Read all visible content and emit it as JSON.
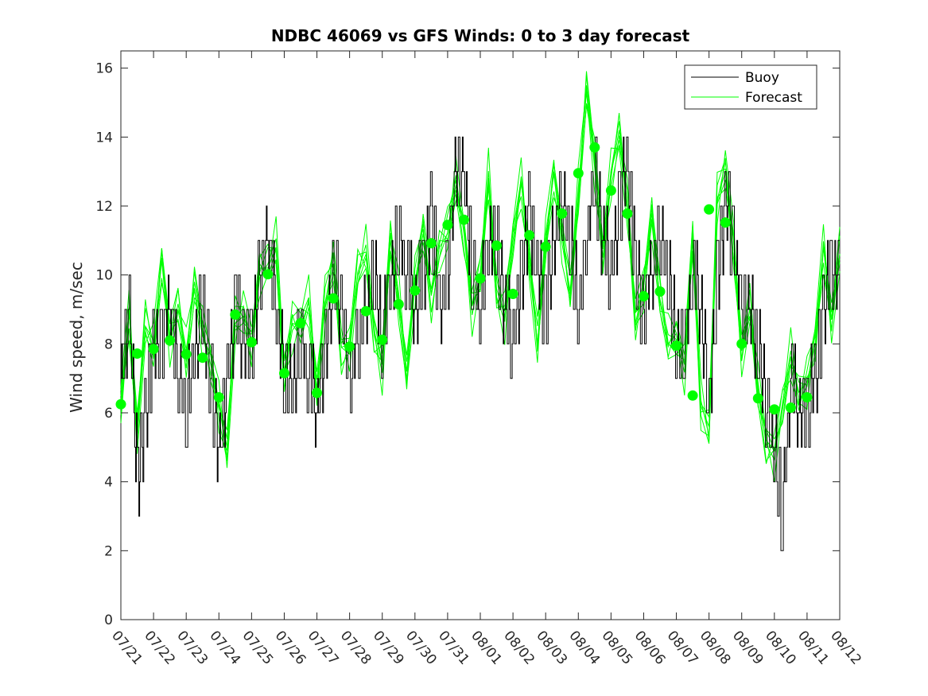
{
  "chart_data": {
    "type": "line",
    "title": "NDBC 46069 vs GFS Winds: 0 to 3 day forecast",
    "xlabel": "",
    "ylabel": "Wind speed, m/sec",
    "xlim": [
      "07/21",
      "08/12"
    ],
    "ylim": [
      0,
      16.5
    ],
    "yticks": [
      0,
      2,
      4,
      6,
      8,
      10,
      12,
      14,
      16
    ],
    "xticks": [
      "07/21",
      "07/22",
      "07/23",
      "07/24",
      "07/25",
      "07/26",
      "07/27",
      "07/28",
      "07/29",
      "07/30",
      "07/31",
      "08/01",
      "08/02",
      "08/03",
      "08/04",
      "08/05",
      "08/06",
      "08/07",
      "08/08",
      "08/09",
      "08/10",
      "08/11",
      "08/12"
    ],
    "grid": false,
    "legend": {
      "location": "top-right",
      "entries": [
        "Buoy",
        "Forecast"
      ]
    },
    "colors": {
      "buoy": "#000000",
      "forecast": "#00ff00",
      "axes": "#262626"
    },
    "series": [
      {
        "name": "Buoy",
        "style": "step",
        "x": [
          "07/21",
          "07/21 06:00",
          "07/21 12:00",
          "07/21 18:00",
          "07/22",
          "07/22 06:00",
          "07/22 12:00",
          "07/22 18:00",
          "07/23",
          "07/23 06:00",
          "07/23 12:00",
          "07/23 18:00",
          "07/24",
          "07/24 06:00",
          "07/24 12:00",
          "07/24 18:00",
          "07/25",
          "07/25 06:00",
          "07/25 12:00",
          "07/25 18:00",
          "07/26",
          "07/26 06:00",
          "07/26 12:00",
          "07/26 18:00",
          "07/27",
          "07/27 06:00",
          "07/27 12:00",
          "07/27 18:00",
          "07/28",
          "07/28 06:00",
          "07/28 12:00",
          "07/28 18:00",
          "07/29",
          "07/29 06:00",
          "07/29 12:00",
          "07/29 18:00",
          "07/30",
          "07/30 06:00",
          "07/30 12:00",
          "07/30 18:00",
          "07/31",
          "07/31 06:00",
          "07/31 12:00",
          "07/31 18:00",
          "08/01",
          "08/01 06:00",
          "08/01 12:00",
          "08/01 18:00",
          "08/02",
          "08/02 06:00",
          "08/02 12:00",
          "08/02 18:00",
          "08/03",
          "08/03 06:00",
          "08/03 12:00",
          "08/03 18:00",
          "08/04",
          "08/04 06:00",
          "08/04 12:00",
          "08/04 18:00",
          "08/05",
          "08/05 06:00",
          "08/05 12:00",
          "08/05 18:00",
          "08/06",
          "08/06 06:00",
          "08/06 12:00",
          "08/06 18:00",
          "08/07",
          "08/07 06:00",
          "08/07 12:00",
          "08/07 18:00",
          "08/08",
          "08/08 06:00",
          "08/08 12:00",
          "08/08 18:00",
          "08/09",
          "08/09 06:00",
          "08/09 12:00",
          "08/09 18:00",
          "08/10",
          "08/10 06:00",
          "08/10 12:00",
          "08/10 18:00",
          "08/11",
          "08/11 06:00",
          "08/11 12:00",
          "08/11 18:00",
          "08/12"
        ],
        "values": [
          7,
          9,
          4,
          6,
          8,
          8,
          9,
          7,
          6,
          8,
          9,
          7,
          5,
          7,
          9,
          8,
          8,
          10,
          11,
          9,
          7,
          7,
          8,
          7,
          6,
          8,
          10,
          9,
          7,
          8,
          9,
          10,
          8,
          10,
          11,
          10,
          9,
          10,
          12,
          9,
          10,
          13,
          13,
          10,
          9,
          11,
          11,
          9,
          8,
          10,
          12,
          10,
          9,
          11,
          12,
          11,
          9,
          11,
          13,
          11,
          10,
          12,
          13,
          10,
          9,
          10,
          11,
          10,
          8,
          8,
          10,
          9,
          6,
          10,
          12,
          11,
          9,
          9,
          8,
          6,
          5,
          3,
          7,
          6,
          6,
          7,
          9,
          10,
          10
        ]
      },
      {
        "name": "Forecast",
        "style": "ensemble",
        "x": [
          "07/21",
          "07/21 06:00",
          "07/21 12:00",
          "07/21 18:00",
          "07/22",
          "07/22 06:00",
          "07/22 12:00",
          "07/22 18:00",
          "07/23",
          "07/23 06:00",
          "07/23 12:00",
          "07/23 18:00",
          "07/24",
          "07/24 06:00",
          "07/24 12:00",
          "07/24 18:00",
          "07/25",
          "07/25 06:00",
          "07/25 12:00",
          "07/25 18:00",
          "07/26",
          "07/26 06:00",
          "07/26 12:00",
          "07/26 18:00",
          "07/27",
          "07/27 06:00",
          "07/27 12:00",
          "07/27 18:00",
          "07/28",
          "07/28 06:00",
          "07/28 12:00",
          "07/28 18:00",
          "07/29",
          "07/29 06:00",
          "07/29 12:00",
          "07/29 18:00",
          "07/30",
          "07/30 06:00",
          "07/30 12:00",
          "07/30 18:00",
          "07/31",
          "07/31 06:00",
          "07/31 12:00",
          "07/31 18:00",
          "08/01",
          "08/01 06:00",
          "08/01 12:00",
          "08/01 18:00",
          "08/02",
          "08/02 06:00",
          "08/02 12:00",
          "08/02 18:00",
          "08/03",
          "08/03 06:00",
          "08/03 12:00",
          "08/03 18:00",
          "08/04",
          "08/04 06:00",
          "08/04 12:00",
          "08/04 18:00",
          "08/05",
          "08/05 06:00",
          "08/05 12:00",
          "08/05 18:00",
          "08/06",
          "08/06 06:00",
          "08/06 12:00",
          "08/06 18:00",
          "08/07",
          "08/07 06:00",
          "08/07 12:00",
          "08/07 18:00",
          "08/08",
          "08/08 06:00",
          "08/08 12:00",
          "08/08 18:00",
          "08/09",
          "08/09 06:00",
          "08/09 12:00",
          "08/09 18:00",
          "08/10",
          "08/10 06:00",
          "08/10 12:00",
          "08/10 18:00",
          "08/11",
          "08/11 06:00",
          "08/11 12:00",
          "08/11 18:00",
          "08/12"
        ],
        "values": [
          6.2,
          8.9,
          5.5,
          8.5,
          7.8,
          10.5,
          8.2,
          9.0,
          7.6,
          9.8,
          8.4,
          7.4,
          6.2,
          5.0,
          8.6,
          8.8,
          8.1,
          10.2,
          10.2,
          10.8,
          7.2,
          8.6,
          8.5,
          9.2,
          6.7,
          9.2,
          10.3,
          7.9,
          8.0,
          10.0,
          10.6,
          8.4,
          7.4,
          11.0,
          9.3,
          7.2,
          9.8,
          11.2,
          9.4,
          10.8,
          11.2,
          12.6,
          11.3,
          9.1,
          9.9,
          12.8,
          9.6,
          8.8,
          11.0,
          12.7,
          10.5,
          8.0,
          10.9,
          13.0,
          11.2,
          9.4,
          12.3,
          15.5,
          13.3,
          10.5,
          12.9,
          14.2,
          12.0,
          8.6,
          9.7,
          11.8,
          9.2,
          8.0,
          8.3,
          7.4,
          11.0,
          6.2,
          5.6,
          12.2,
          13.0,
          11.0,
          7.8,
          9.0,
          6.6,
          5.2,
          4.9,
          6.1,
          7.6,
          6.6,
          6.9,
          8.0,
          10.8,
          8.7,
          10.6
        ],
        "marker_x": [
          "07/21",
          "07/21 12:00",
          "07/22",
          "07/22 12:00",
          "07/23",
          "07/23 12:00",
          "07/24",
          "07/24 12:00",
          "07/25",
          "07/25 12:00",
          "07/26",
          "07/26 12:00",
          "07/27",
          "07/27 12:00",
          "07/28",
          "07/28 12:00",
          "07/29",
          "07/29 12:00",
          "07/30",
          "07/30 12:00",
          "07/31",
          "07/31 12:00",
          "08/01",
          "08/01 12:00",
          "08/02",
          "08/02 12:00",
          "08/03",
          "08/03 12:00",
          "08/04",
          "08/04 12:00",
          "08/05",
          "08/05 12:00",
          "08/06",
          "08/06 12:00",
          "08/07",
          "08/07 12:00",
          "08/08",
          "08/08 12:00",
          "08/09",
          "08/09 12:00",
          "08/10",
          "08/10 12:00",
          "08/11"
        ],
        "marker_values": [
          6.25,
          7.72,
          7.85,
          8.1,
          7.7,
          7.6,
          6.45,
          8.85,
          8.05,
          10.02,
          7.15,
          8.6,
          6.58,
          9.32,
          7.92,
          8.95,
          8.12,
          9.15,
          9.55,
          10.92,
          11.45,
          11.6,
          9.9,
          10.85,
          9.45,
          11.15,
          10.82,
          11.78,
          12.95,
          13.7,
          12.45,
          11.78,
          9.38,
          9.52,
          7.95,
          6.5,
          11.9,
          11.52,
          8.0,
          6.42,
          6.1,
          6.15,
          6.45
        ]
      }
    ]
  }
}
